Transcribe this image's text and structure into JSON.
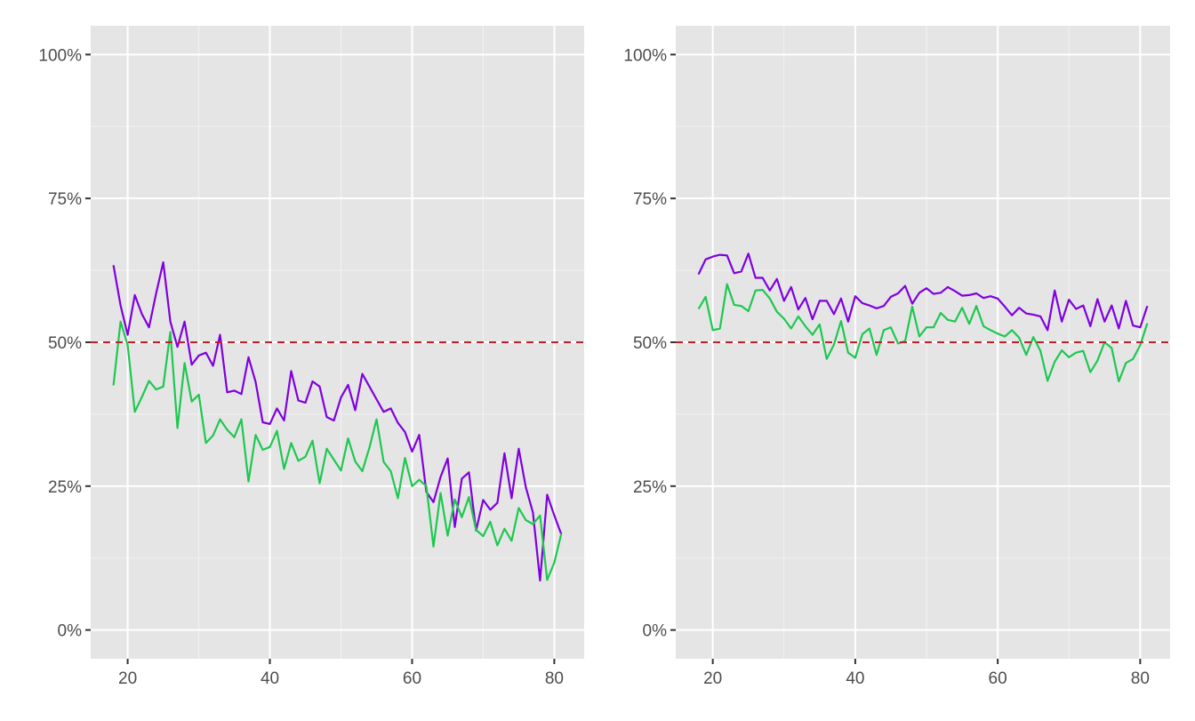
{
  "chart_data": [
    {
      "type": "line",
      "title": "",
      "xlabel": "",
      "ylabel": "",
      "xlim": [
        14.8,
        84.2
      ],
      "ylim": [
        -5,
        105
      ],
      "x_ticks": [
        20,
        40,
        60,
        80
      ],
      "y_ticks": [
        0,
        25,
        50,
        75,
        100
      ],
      "y_tick_labels": [
        "0%",
        "25%",
        "50%",
        "75%",
        "100%"
      ],
      "grid": true,
      "legend": "none",
      "reference_line": {
        "y": 50,
        "style": "dashed",
        "color": "#c0202a"
      },
      "x": [
        18,
        19,
        20,
        21,
        22,
        23,
        24,
        25,
        26,
        27,
        28,
        29,
        30,
        31,
        32,
        33,
        34,
        35,
        36,
        37,
        38,
        39,
        40,
        41,
        42,
        43,
        44,
        45,
        46,
        47,
        48,
        49,
        50,
        51,
        52,
        53,
        54,
        55,
        56,
        57,
        58,
        59,
        60,
        61,
        62,
        63,
        64,
        65,
        66,
        67,
        68,
        69,
        70,
        71,
        72,
        73,
        74,
        75,
        76,
        77,
        78,
        79,
        80,
        81
      ],
      "series": [
        {
          "name": "purple",
          "color": "#8000e0",
          "values": [
            63.4,
            56.4,
            51.3,
            58.2,
            54.9,
            52.6,
            58.5,
            63.9,
            53.6,
            49.2,
            53.6,
            46.1,
            47.7,
            48.2,
            45.9,
            51.3,
            41.3,
            41.6,
            41.0,
            47.4,
            43.1,
            36.1,
            35.8,
            38.5,
            36.4,
            45.0,
            39.9,
            39.5,
            43.2,
            42.3,
            37.0,
            36.4,
            40.4,
            42.6,
            38.2,
            44.5,
            42.3,
            40.1,
            37.9,
            38.5,
            36.0,
            34.4,
            31.0,
            33.9,
            24.0,
            22.2,
            26.6,
            29.8,
            17.9,
            26.3,
            27.4,
            17.3,
            22.6,
            20.9,
            22.1,
            30.7,
            22.9,
            31.5,
            24.8,
            20.4,
            8.6,
            23.5,
            19.9,
            16.6
          ]
        },
        {
          "name": "green",
          "color": "#1ec850",
          "values": [
            42.5,
            53.6,
            49.5,
            37.9,
            40.5,
            43.3,
            41.8,
            42.3,
            51.8,
            35.1,
            46.4,
            39.7,
            40.9,
            32.5,
            33.8,
            36.6,
            34.8,
            33.5,
            36.6,
            25.8,
            33.9,
            31.3,
            31.8,
            34.6,
            28.0,
            32.5,
            29.4,
            30.1,
            32.9,
            25.5,
            31.5,
            29.6,
            27.7,
            33.3,
            29.3,
            27.6,
            31.7,
            36.6,
            29.2,
            27.6,
            22.9,
            29.9,
            25.0,
            26.1,
            25.0,
            14.5,
            23.8,
            16.4,
            22.7,
            19.6,
            23.1,
            17.4,
            16.3,
            18.8,
            14.7,
            17.6,
            15.5,
            21.2,
            19.1,
            18.4,
            19.9,
            8.7,
            11.7,
            16.8
          ]
        }
      ]
    },
    {
      "type": "line",
      "title": "",
      "xlabel": "",
      "ylabel": "",
      "xlim": [
        14.8,
        84.2
      ],
      "ylim": [
        -5,
        105
      ],
      "x_ticks": [
        20,
        40,
        60,
        80
      ],
      "y_ticks": [
        0,
        25,
        50,
        75,
        100
      ],
      "y_tick_labels": [
        "0%",
        "25%",
        "50%",
        "75%",
        "100%"
      ],
      "grid": true,
      "legend": "none",
      "reference_line": {
        "y": 50,
        "style": "dashed",
        "color": "#c0202a"
      },
      "x": [
        18,
        19,
        20,
        21,
        22,
        23,
        24,
        25,
        26,
        27,
        28,
        29,
        30,
        31,
        32,
        33,
        34,
        35,
        36,
        37,
        38,
        39,
        40,
        41,
        42,
        43,
        44,
        45,
        46,
        47,
        48,
        49,
        50,
        51,
        52,
        53,
        54,
        55,
        56,
        57,
        58,
        59,
        60,
        61,
        62,
        63,
        64,
        65,
        66,
        67,
        68,
        69,
        70,
        71,
        72,
        73,
        74,
        75,
        76,
        77,
        78,
        79,
        80,
        81
      ],
      "series": [
        {
          "name": "purple",
          "color": "#8000e0",
          "values": [
            61.8,
            64.4,
            64.9,
            65.2,
            65.1,
            62.0,
            62.3,
            65.4,
            61.2,
            61.2,
            59.0,
            61.0,
            57.2,
            59.6,
            55.7,
            57.7,
            54.0,
            57.2,
            57.2,
            54.9,
            57.6,
            53.6,
            58.0,
            56.8,
            56.4,
            55.9,
            56.3,
            57.9,
            58.5,
            59.8,
            56.7,
            58.6,
            59.4,
            58.4,
            58.6,
            59.6,
            58.9,
            58.1,
            58.2,
            58.5,
            57.7,
            58.0,
            57.6,
            56.2,
            54.7,
            56.0,
            55.0,
            54.8,
            54.5,
            52.1,
            59.0,
            53.6,
            57.4,
            55.8,
            56.4,
            52.8,
            57.5,
            53.6,
            56.4,
            52.4,
            57.2,
            52.9,
            52.6,
            56.3
          ]
        },
        {
          "name": "green",
          "color": "#1ec850",
          "values": [
            55.8,
            57.9,
            52.1,
            52.4,
            60.1,
            56.5,
            56.3,
            55.4,
            59.0,
            59.1,
            57.6,
            55.3,
            54.1,
            52.4,
            54.5,
            52.8,
            51.3,
            53.1,
            47.1,
            49.6,
            53.7,
            48.2,
            47.3,
            51.4,
            52.4,
            47.8,
            52.1,
            52.6,
            49.8,
            50.2,
            56.2,
            51.0,
            52.6,
            52.6,
            55.1,
            53.9,
            53.6,
            56.0,
            53.2,
            56.3,
            52.8,
            52.1,
            51.5,
            51.0,
            52.1,
            50.8,
            47.8,
            50.9,
            48.5,
            43.3,
            46.6,
            48.6,
            47.4,
            48.2,
            48.5,
            44.8,
            46.8,
            50.0,
            49.0,
            43.2,
            46.4,
            47.1,
            49.5,
            53.3
          ]
        }
      ]
    }
  ],
  "colors": {
    "panel_background": "#e5e5e5",
    "grid_major": "#ffffff",
    "grid_minor": "#f2f2f2",
    "axis_text": "#4d4d4d",
    "tick": "#333333"
  }
}
